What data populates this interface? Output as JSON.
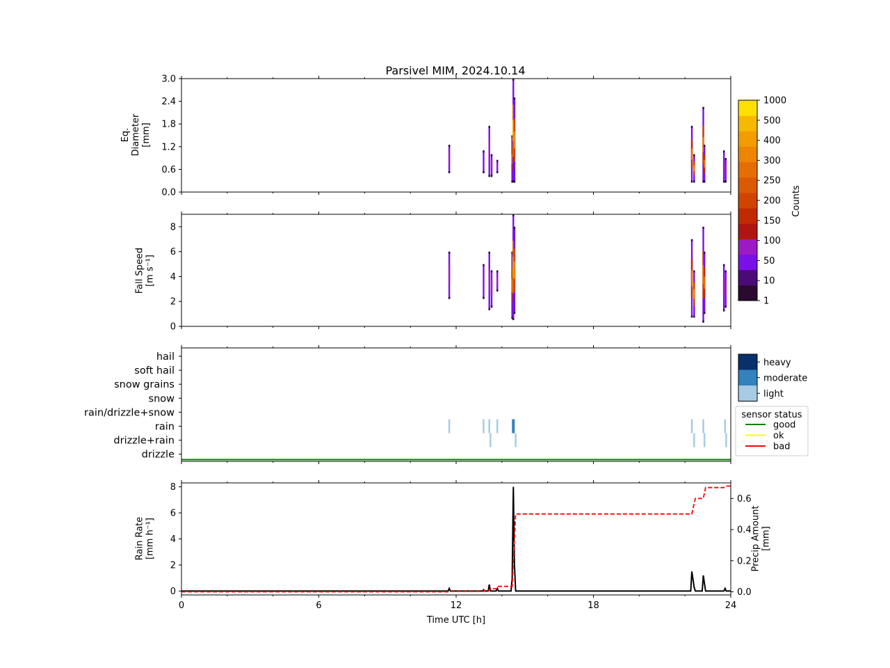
{
  "title": "Parsivel MIM, 2024.10.14",
  "xlabel": "Time UTC [h]",
  "xticks": [
    "0",
    "6",
    "12",
    "18",
    "24"
  ],
  "panel1": {
    "ylabel_lines": [
      "Eq.",
      "Diameter",
      "[mm]"
    ],
    "yticks": [
      "0.0",
      "0.6",
      "1.2",
      "1.8",
      "2.4",
      "3.0"
    ]
  },
  "panel2": {
    "ylabel_lines": [
      "Fall Speed",
      "[m s⁻¹]"
    ],
    "yticks": [
      "0",
      "2",
      "4",
      "6",
      "8"
    ]
  },
  "panel3": {
    "categories": [
      "hail",
      "soft hail",
      "snow grains",
      "snow",
      "rain/drizzle+snow",
      "rain",
      "drizzle+rain",
      "drizzle"
    ],
    "intensity_legend": [
      "heavy",
      "moderate",
      "light"
    ],
    "status_legend_title": "sensor status",
    "status_legend": [
      "good",
      "ok",
      "bad"
    ]
  },
  "panel4": {
    "ylabel_lines": [
      "Rain Rate",
      "[mm h⁻¹]"
    ],
    "yticks": [
      "0",
      "2",
      "4",
      "6",
      "8"
    ],
    "ylabel2_lines": [
      "Precip Amount",
      "[mm]"
    ],
    "yticks2": [
      "0.0",
      "0.2",
      "0.4",
      "0.6"
    ]
  },
  "colorbar": {
    "label": "Counts",
    "ticks": [
      "1",
      "10",
      "50",
      "100",
      "150",
      "200",
      "250",
      "300",
      "400",
      "500",
      "1000"
    ]
  },
  "colors": {
    "good": "#008000",
    "ok": "#ffff00",
    "bad": "#ff0000",
    "heavy": "#08306b",
    "moderate": "#3182bd",
    "light": "#a6cbe3"
  },
  "chart_data": [
    {
      "type": "heatmap",
      "title": "Parsivel MIM, 2024.10.14",
      "ylabel": "Eq. Diameter [mm]",
      "xlim": [
        0,
        24
      ],
      "ylim": [
        0,
        3.0
      ],
      "columns": [
        {
          "t": 11.7,
          "y0": 0.5,
          "y1": 1.25,
          "level": 3
        },
        {
          "t": 13.2,
          "y0": 0.5,
          "y1": 1.1,
          "level": 2
        },
        {
          "t": 13.45,
          "y0": 0.4,
          "y1": 1.75,
          "level": 3
        },
        {
          "t": 13.55,
          "y0": 0.4,
          "y1": 1.0,
          "level": 3
        },
        {
          "t": 13.8,
          "y0": 0.5,
          "y1": 0.85,
          "level": 4
        },
        {
          "t": 14.45,
          "y0": 0.25,
          "y1": 1.5,
          "level": 5
        },
        {
          "t": 14.5,
          "y0": 0.25,
          "y1": 3.0,
          "level": 8
        },
        {
          "t": 14.55,
          "y0": 0.25,
          "y1": 2.5,
          "level": 6
        },
        {
          "t": 22.3,
          "y0": 0.25,
          "y1": 1.75,
          "level": 5
        },
        {
          "t": 22.4,
          "y0": 0.25,
          "y1": 1.0,
          "level": 6
        },
        {
          "t": 22.8,
          "y0": 0.25,
          "y1": 2.25,
          "level": 6
        },
        {
          "t": 22.85,
          "y0": 0.25,
          "y1": 1.25,
          "level": 5
        },
        {
          "t": 23.7,
          "y0": 0.25,
          "y1": 1.1,
          "level": 3
        },
        {
          "t": 23.78,
          "y0": 0.25,
          "y1": 0.9,
          "level": 4
        }
      ]
    },
    {
      "type": "heatmap",
      "ylabel": "Fall Speed [m s⁻¹]",
      "xlim": [
        0,
        24
      ],
      "ylim": [
        0,
        9
      ],
      "columns": [
        {
          "t": 11.7,
          "y0": 2.2,
          "y1": 6.0,
          "level": 3
        },
        {
          "t": 13.2,
          "y0": 2.2,
          "y1": 5.0,
          "level": 2
        },
        {
          "t": 13.45,
          "y0": 1.3,
          "y1": 6.0,
          "level": 3
        },
        {
          "t": 13.55,
          "y0": 1.5,
          "y1": 4.5,
          "level": 3
        },
        {
          "t": 13.8,
          "y0": 2.8,
          "y1": 4.5,
          "level": 4
        },
        {
          "t": 14.45,
          "y0": 0.6,
          "y1": 6.0,
          "level": 5
        },
        {
          "t": 14.5,
          "y0": 0.5,
          "y1": 9.0,
          "level": 8
        },
        {
          "t": 14.55,
          "y0": 1.0,
          "y1": 8.0,
          "level": 6
        },
        {
          "t": 22.3,
          "y0": 0.7,
          "y1": 7.0,
          "level": 5
        },
        {
          "t": 22.4,
          "y0": 0.7,
          "y1": 4.5,
          "level": 6
        },
        {
          "t": 22.8,
          "y0": 0.3,
          "y1": 8.0,
          "level": 6
        },
        {
          "t": 22.85,
          "y0": 1.0,
          "y1": 6.0,
          "level": 5
        },
        {
          "t": 23.7,
          "y0": 1.2,
          "y1": 5.0,
          "level": 3
        },
        {
          "t": 23.78,
          "y0": 1.5,
          "y1": 4.5,
          "level": 4
        }
      ]
    },
    {
      "type": "heatmap",
      "ylabel": "precipitation type",
      "xlim": [
        0,
        24
      ],
      "events": [
        {
          "t": 11.7,
          "type": "rain",
          "intensity": "light"
        },
        {
          "t": 13.2,
          "type": "rain",
          "intensity": "light"
        },
        {
          "t": 13.45,
          "type": "rain",
          "intensity": "light"
        },
        {
          "t": 13.5,
          "type": "drizzle+rain",
          "intensity": "light"
        },
        {
          "t": 13.8,
          "type": "rain",
          "intensity": "light"
        },
        {
          "t": 14.5,
          "type": "rain",
          "intensity": "moderate"
        },
        {
          "t": 14.6,
          "type": "drizzle+rain",
          "intensity": "light"
        },
        {
          "t": 22.3,
          "type": "rain",
          "intensity": "light"
        },
        {
          "t": 22.4,
          "type": "drizzle+rain",
          "intensity": "light"
        },
        {
          "t": 22.8,
          "type": "rain",
          "intensity": "light"
        },
        {
          "t": 22.85,
          "type": "drizzle+rain",
          "intensity": "light"
        },
        {
          "t": 23.75,
          "type": "rain",
          "intensity": "light"
        },
        {
          "t": 23.8,
          "type": "drizzle+rain",
          "intensity": "light"
        }
      ],
      "sensor_status": {
        "value": "good",
        "t_range": [
          0,
          24
        ]
      }
    },
    {
      "type": "line",
      "xlabel": "Time UTC [h]",
      "ylabel": "Rain Rate [mm h⁻¹]",
      "ylabel2": "Precip Amount [mm]",
      "xlim": [
        0,
        24
      ],
      "ylim": [
        -0.3,
        8.3
      ],
      "ylim2": [
        -0.02,
        0.7
      ],
      "series": [
        {
          "axis": "left",
          "color": "#000000",
          "style": "solid",
          "points": [
            [
              0,
              0
            ],
            [
              11.65,
              0
            ],
            [
              11.7,
              0.2
            ],
            [
              11.75,
              0
            ],
            [
              13.15,
              0
            ],
            [
              13.2,
              0.1
            ],
            [
              13.25,
              0
            ],
            [
              13.4,
              0
            ],
            [
              13.45,
              0.5
            ],
            [
              13.5,
              0
            ],
            [
              13.75,
              0
            ],
            [
              13.8,
              0.2
            ],
            [
              13.85,
              0
            ],
            [
              14.4,
              0
            ],
            [
              14.45,
              1.0
            ],
            [
              14.5,
              8.0
            ],
            [
              14.55,
              2.0
            ],
            [
              14.6,
              0
            ],
            [
              22.25,
              0
            ],
            [
              22.3,
              1.5
            ],
            [
              22.4,
              0.3
            ],
            [
              22.45,
              0
            ],
            [
              22.75,
              0
            ],
            [
              22.8,
              1.2
            ],
            [
              22.85,
              0.6
            ],
            [
              22.9,
              0
            ],
            [
              23.7,
              0
            ],
            [
              23.75,
              0.2
            ],
            [
              23.8,
              0
            ],
            [
              24,
              0
            ]
          ]
        },
        {
          "axis": "right",
          "color": "#ff0000",
          "style": "dashed",
          "points": [
            [
              0,
              0
            ],
            [
              11.7,
              0
            ],
            [
              11.75,
              0.003
            ],
            [
              13.2,
              0.003
            ],
            [
              13.25,
              0.008
            ],
            [
              13.45,
              0.008
            ],
            [
              13.5,
              0.02
            ],
            [
              13.8,
              0.02
            ],
            [
              13.85,
              0.035
            ],
            [
              14.45,
              0.035
            ],
            [
              14.6,
              0.5
            ],
            [
              22.3,
              0.5
            ],
            [
              22.45,
              0.6
            ],
            [
              22.8,
              0.6
            ],
            [
              22.9,
              0.67
            ],
            [
              23.7,
              0.67
            ],
            [
              23.8,
              0.68
            ],
            [
              24,
              0.68
            ]
          ]
        }
      ]
    }
  ]
}
